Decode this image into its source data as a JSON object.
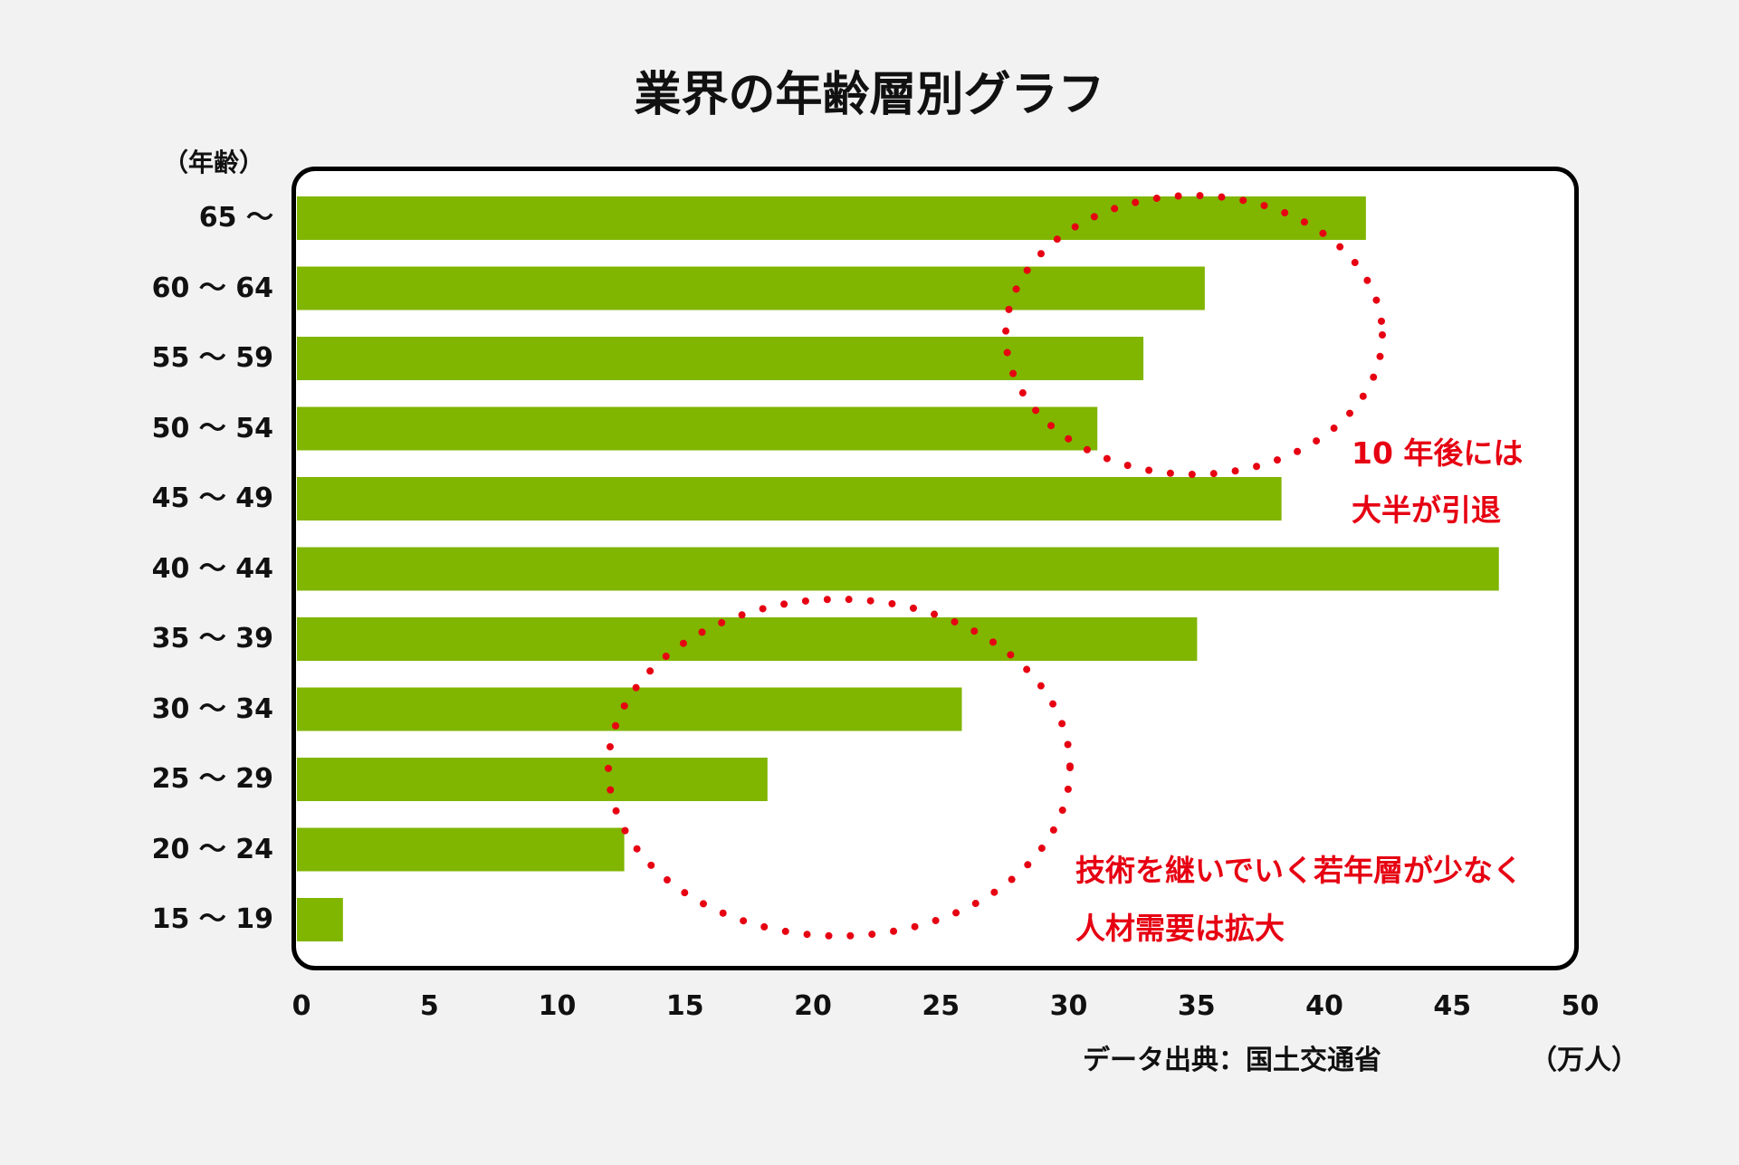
{
  "chart_data": {
    "type": "bar",
    "orientation": "horizontal",
    "title": "業界の年齢層別グラフ",
    "ylabel": "（年齢）",
    "xlabel": "（万人）",
    "source": "データ出典：国土交通省",
    "categories": [
      "65 〜",
      "60 〜 64",
      "55 〜 59",
      "50 〜 54",
      "45 〜 49",
      "40 〜 44",
      "35 〜 39",
      "30 〜 34",
      "25 〜 29",
      "20 〜 24",
      "15 〜 19"
    ],
    "values": [
      41.8,
      35.5,
      33.1,
      31.3,
      38.5,
      47.0,
      35.2,
      26.0,
      18.4,
      12.8,
      1.8
    ],
    "xlim": [
      0,
      50
    ],
    "xticks": [
      "0",
      "5",
      "10",
      "15",
      "20",
      "25",
      "30",
      "35",
      "40",
      "45",
      "50"
    ],
    "bar_color": "#80b500",
    "annotations": [
      {
        "lines": [
          "10 年後には",
          "大半が引退"
        ],
        "color": "#e60012",
        "highlights_categories": [
          "65 〜",
          "60 〜 64",
          "55 〜 59",
          "50 〜 54"
        ]
      },
      {
        "lines": [
          "技術を継いでいく若年層が少なく",
          "人材需要は拡大"
        ],
        "color": "#e60012",
        "highlights_categories": [
          "30 〜 34",
          "25 〜 29",
          "20 〜 24",
          "15 〜 19"
        ]
      }
    ]
  }
}
